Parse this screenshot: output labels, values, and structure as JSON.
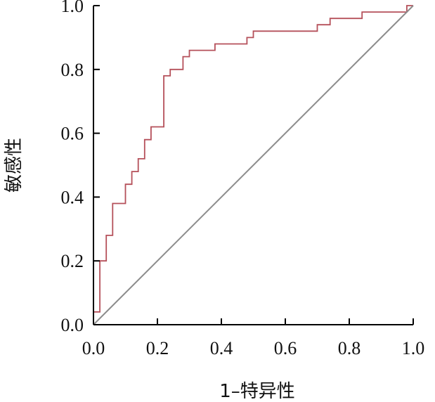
{
  "chart_data": {
    "type": "line",
    "title": "",
    "xlabel": "1–特异性",
    "ylabel": "敏感性",
    "xlim": [
      0,
      1
    ],
    "ylim": [
      0,
      1
    ],
    "x_ticks": [
      "0.0",
      "0.2",
      "0.4",
      "0.6",
      "0.8",
      "1.0"
    ],
    "y_ticks": [
      "0.0",
      "0.2",
      "0.4",
      "0.6",
      "0.8",
      "1.0"
    ],
    "grid": false,
    "legend": "none",
    "series": [
      {
        "style": "step",
        "color": "#b5505a",
        "x": [
          0,
          0,
          0.02,
          0.02,
          0.04,
          0.04,
          0.06,
          0.06,
          0.1,
          0.1,
          0.12,
          0.12,
          0.14,
          0.14,
          0.16,
          0.16,
          0.18,
          0.18,
          0.22,
          0.22,
          0.24,
          0.24,
          0.28,
          0.28,
          0.3,
          0.3,
          0.38,
          0.38,
          0.48,
          0.48,
          0.5,
          0.5,
          0.7,
          0.7,
          0.74,
          0.74,
          0.84,
          0.84,
          0.98,
          0.98,
          1.0
        ],
        "y": [
          0,
          0.04,
          0.04,
          0.2,
          0.2,
          0.28,
          0.28,
          0.38,
          0.38,
          0.44,
          0.44,
          0.48,
          0.48,
          0.52,
          0.52,
          0.58,
          0.58,
          0.62,
          0.62,
          0.78,
          0.78,
          0.8,
          0.8,
          0.84,
          0.84,
          0.86,
          0.86,
          0.88,
          0.88,
          0.9,
          0.9,
          0.92,
          0.92,
          0.94,
          0.94,
          0.96,
          0.96,
          0.98,
          0.98,
          1.0,
          1.0
        ]
      },
      {
        "style": "diagonal-reference",
        "color": "#8c8c8c",
        "x": [
          0,
          1
        ],
        "y": [
          0,
          1
        ]
      }
    ]
  }
}
